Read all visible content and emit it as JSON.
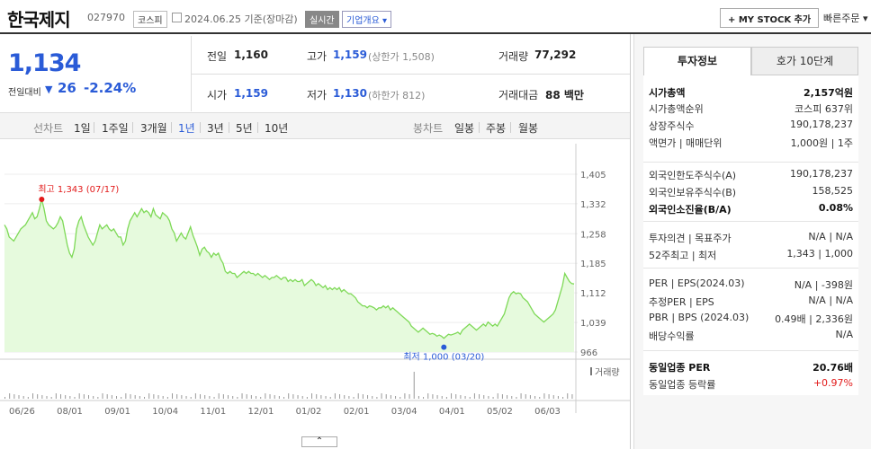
{
  "header": {
    "company_name": "한국제지",
    "code": "027970",
    "market": "코스피",
    "date": "2024.06.25 기준(장마감)",
    "realtime": "실시간",
    "company_overview": "기업개요 ▾",
    "my_stock": "+ MY STOCK 추가",
    "quick_order": "빠른주문 ▾"
  },
  "summary": {
    "price": "1,134",
    "prev_label": "전일대비",
    "change_arrow": "▼",
    "change": "26",
    "change_pct": "-2.24%",
    "metrics": {
      "prev_close_label": "전일",
      "prev_close": "1,160",
      "high_label": "고가",
      "high": "1,159",
      "upper_limit": "(상한가 1,508)",
      "volume_label": "거래량",
      "volume": "77,292",
      "open_label": "시가",
      "open": "1,159",
      "low_label": "저가",
      "low": "1,130",
      "lower_limit": "(하한가 812)",
      "amount_label": "거래대금",
      "amount": "88 백만"
    }
  },
  "periods": {
    "line_chart": "선차트",
    "items": [
      "1일",
      "1주일",
      "3개월",
      "1년",
      "3년",
      "5년",
      "10년"
    ],
    "selected": "1년",
    "candle_chart": "봉차트",
    "candle_items": [
      "일봉",
      "주봉",
      "월봉"
    ]
  },
  "chart_data": {
    "type": "area",
    "x_ticks": [
      "06/26",
      "08/01",
      "09/01",
      "10/04",
      "11/01",
      "12/01",
      "01/02",
      "02/01",
      "03/04",
      "04/01",
      "05/02",
      "06/03"
    ],
    "y_ticks": [
      1405,
      1332,
      1258,
      1185,
      1112,
      1039,
      966
    ],
    "ylim": [
      966,
      1405
    ],
    "values": [
      1280,
      1270,
      1250,
      1245,
      1240,
      1250,
      1260,
      1270,
      1275,
      1280,
      1290,
      1300,
      1310,
      1295,
      1300,
      1320,
      1343,
      1320,
      1290,
      1280,
      1275,
      1270,
      1275,
      1285,
      1300,
      1290,
      1260,
      1230,
      1210,
      1200,
      1220,
      1270,
      1290,
      1300,
      1280,
      1265,
      1250,
      1240,
      1230,
      1240,
      1260,
      1280,
      1270,
      1275,
      1280,
      1270,
      1265,
      1270,
      1260,
      1250,
      1250,
      1230,
      1240,
      1270,
      1290,
      1300,
      1310,
      1300,
      1310,
      1320,
      1310,
      1315,
      1310,
      1300,
      1320,
      1305,
      1300,
      1295,
      1310,
      1305,
      1300,
      1290,
      1270,
      1260,
      1240,
      1250,
      1260,
      1250,
      1245,
      1260,
      1275,
      1255,
      1240,
      1225,
      1205,
      1220,
      1225,
      1215,
      1210,
      1200,
      1210,
      1205,
      1210,
      1195,
      1185,
      1165,
      1160,
      1165,
      1160,
      1160,
      1150,
      1155,
      1160,
      1165,
      1160,
      1165,
      1160,
      1160,
      1155,
      1160,
      1155,
      1150,
      1155,
      1150,
      1145,
      1150,
      1150,
      1155,
      1150,
      1145,
      1150,
      1150,
      1140,
      1145,
      1140,
      1145,
      1140,
      1140,
      1145,
      1130,
      1135,
      1140,
      1145,
      1140,
      1130,
      1135,
      1130,
      1125,
      1130,
      1120,
      1125,
      1120,
      1125,
      1120,
      1125,
      1115,
      1120,
      1115,
      1110,
      1110,
      1105,
      1100,
      1090,
      1085,
      1080,
      1080,
      1075,
      1080,
      1078,
      1075,
      1070,
      1075,
      1075,
      1080,
      1075,
      1080,
      1070,
      1075,
      1070,
      1065,
      1060,
      1055,
      1050,
      1045,
      1040,
      1030,
      1025,
      1020,
      1015,
      1020,
      1025,
      1020,
      1015,
      1010,
      1012,
      1010,
      1005,
      1008,
      1005,
      1000,
      1005,
      1010,
      1008,
      1010,
      1012,
      1015,
      1010,
      1020,
      1025,
      1030,
      1035,
      1030,
      1025,
      1020,
      1025,
      1030,
      1035,
      1030,
      1040,
      1035,
      1030,
      1035,
      1030,
      1040,
      1050,
      1060,
      1080,
      1100,
      1110,
      1115,
      1110,
      1112,
      1110,
      1100,
      1095,
      1090,
      1080,
      1070,
      1060,
      1055,
      1050,
      1045,
      1040,
      1045,
      1050,
      1055,
      1060,
      1070,
      1090,
      1110,
      1130,
      1160,
      1150,
      1140,
      1135,
      1134
    ],
    "max_label": "최고 1,343 (07/17)",
    "min_label": "최저 1,000 (03/20)",
    "volume_legend": "거래량",
    "line_color": "#7ed957",
    "fill_color": "#e6fadd"
  },
  "side": {
    "tabs": [
      "투자정보",
      "호가 10단계"
    ],
    "section1": [
      {
        "label": "시가총액",
        "value": "2,157억원",
        "bold": true
      },
      {
        "label": "시가총액순위",
        "value": "코스피 637위"
      },
      {
        "label": "상장주식수",
        "value": "190,178,237"
      },
      {
        "label": "액면가 | 매매단위",
        "value": "1,000원 | 1주"
      }
    ],
    "section2": [
      {
        "label": "외국인한도주식수(A)",
        "value": "190,178,237"
      },
      {
        "label": "외국인보유주식수(B)",
        "value": "158,525"
      },
      {
        "label": "외국인소진율(B/A)",
        "value": "0.08%",
        "bold": true
      }
    ],
    "section3": [
      {
        "label": "투자의견 | 목표주가",
        "value": "N/A | N/A"
      },
      {
        "label": "52주최고 | 최저",
        "value": "1,343 | 1,000"
      }
    ],
    "section4": [
      {
        "label": "PER | EPS(2024.03)",
        "value": "N/A | -398원"
      },
      {
        "label": "추정PER | EPS",
        "value": "N/A | N/A"
      },
      {
        "label": "PBR | BPS (2024.03)",
        "value": "0.49배 | 2,336원"
      },
      {
        "label": "배당수익률",
        "value": "N/A"
      }
    ],
    "section5": [
      {
        "label": "동일업종 PER",
        "value": "20.76배",
        "bold": true
      },
      {
        "label": "동일업종 등락률",
        "value": "+0.97%",
        "red": true
      }
    ]
  },
  "collapse_label": "⌃"
}
